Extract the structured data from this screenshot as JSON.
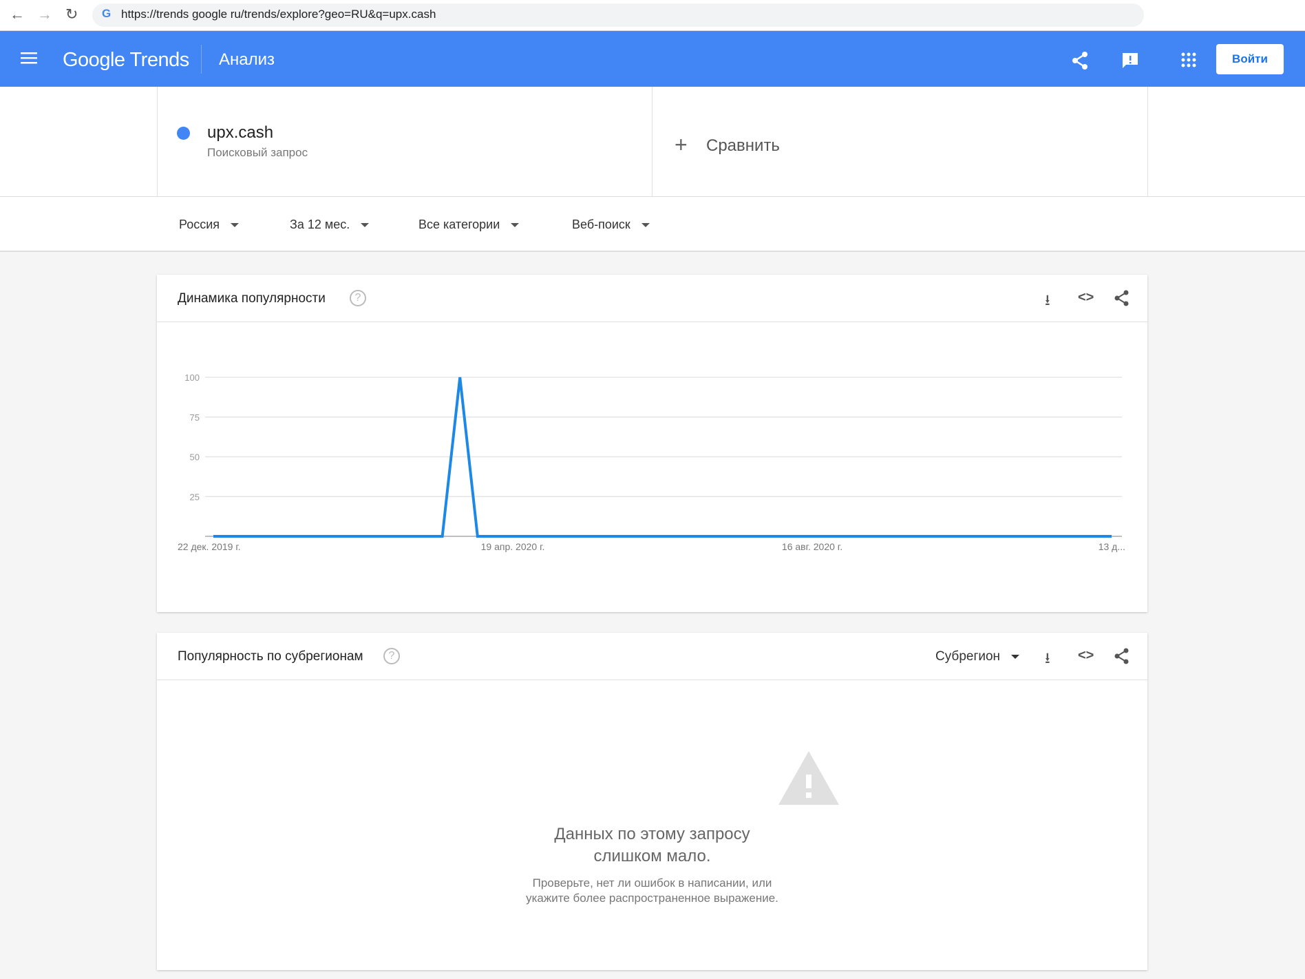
{
  "browser": {
    "url": "https://trends google ru/trends/explore?geo=RU&q=upx.cash"
  },
  "header": {
    "logo": "Google Trends",
    "title": "Анализ",
    "login_label": "Войти"
  },
  "search": {
    "term": "upx.cash",
    "term_type": "Поисковый запрос",
    "compare_label": "Сравнить",
    "term_color": "#4285f4"
  },
  "filters": {
    "region": "Россия",
    "period": "За 12 мес.",
    "category": "Все категории",
    "search_type": "Веб-поиск"
  },
  "interest_over_time": {
    "title": "Динамика популярности"
  },
  "chart_data": {
    "type": "line",
    "x_start": "22 дек. 2019 г.",
    "x_interval": "week",
    "x_tick_labels": [
      "22 дек. 2019 г.",
      "19 апр. 2020 г.",
      "16 авг. 2020 г.",
      "13 д..."
    ],
    "y_ticks": [
      25,
      50,
      75,
      100
    ],
    "ylim": [
      0,
      100
    ],
    "grid": true,
    "line_color": "#1e88e5",
    "series": [
      {
        "name": "upx.cash",
        "values": [
          0,
          0,
          0,
          0,
          0,
          0,
          0,
          0,
          0,
          0,
          0,
          0,
          0,
          0,
          100,
          0,
          0,
          0,
          0,
          0,
          0,
          0,
          0,
          0,
          0,
          0,
          0,
          0,
          0,
          0,
          0,
          0,
          0,
          0,
          0,
          0,
          0,
          0,
          0,
          0,
          0,
          0,
          0,
          0,
          0,
          0,
          0,
          0,
          0,
          0,
          0,
          0
        ]
      }
    ]
  },
  "subregion": {
    "title": "Популярность по субрегионам",
    "dropdown": "Субрегион",
    "empty_title_1": "Данных по этому запросу",
    "empty_title_2": "слишком мало.",
    "empty_text_1": "Проверьте, нет ли ошибок в написании, или",
    "empty_text_2": "укажите более распространенное выражение."
  }
}
